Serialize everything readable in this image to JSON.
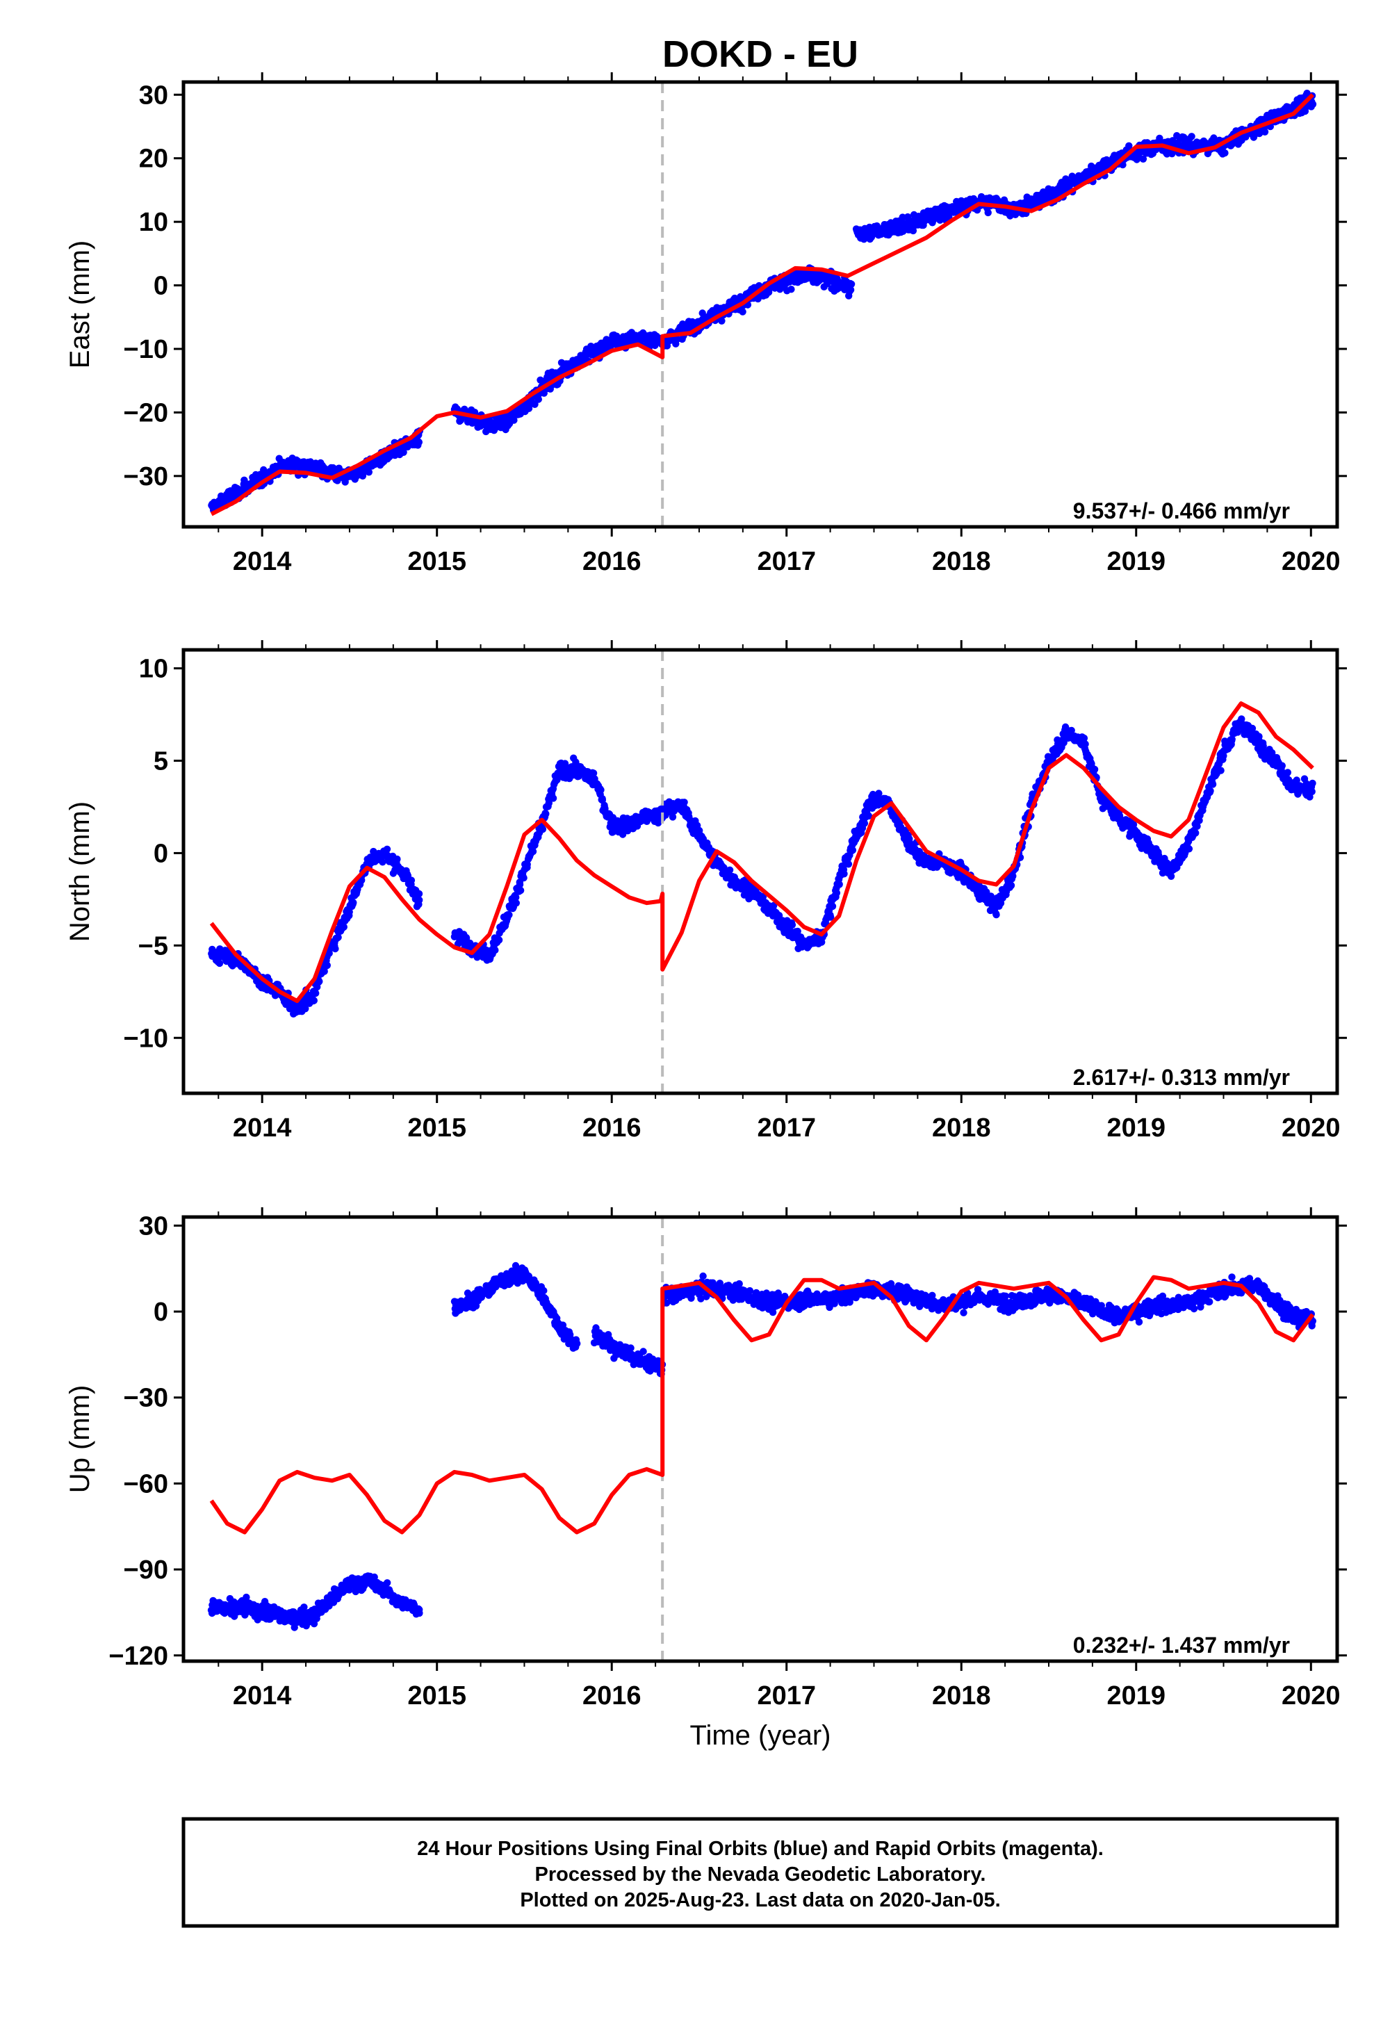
{
  "title": "DOKD - EU",
  "footer": {
    "line1": "24 Hour Positions Using Final Orbits (blue) and Rapid Orbits (magenta).",
    "line2": "Processed by the Nevada Geodetic Laboratory.",
    "line3": "Plotted on 2025-Aug-23. Last data on 2020-Jan-05."
  },
  "colors": {
    "data": "#0000ff",
    "model": "#ff0000",
    "event_line": "#bbbbbb",
    "frame": "#000000"
  },
  "event_time": 2016.29,
  "chart_data": [
    {
      "type": "scatter",
      "component": "east",
      "ylabel": "East (mm)",
      "xlabel": "",
      "rate_text": "9.537+/- 0.466 mm/yr",
      "xlim": [
        2013.55,
        2020.15
      ],
      "ylim": [
        -38,
        32
      ],
      "x_ticks": [
        "2014",
        "2015",
        "2016",
        "2017",
        "2018",
        "2019",
        "2020"
      ],
      "y_ticks": [
        -30,
        -20,
        -10,
        0,
        10,
        20,
        30
      ],
      "y_tick_labels": [
        "−30",
        "−20",
        "−10",
        "0",
        "10",
        "20",
        "30"
      ],
      "series": [
        {
          "kind": "points",
          "segments": [
            {
              "x": [
                2013.71,
                2013.8,
                2013.9,
                2014.0,
                2014.1,
                2014.2,
                2014.3,
                2014.4,
                2014.5,
                2014.6,
                2014.7,
                2014.8,
                2014.9
              ],
              "y": [
                -35,
                -33.5,
                -32,
                -30.5,
                -28.5,
                -28,
                -28.8,
                -29.5,
                -30,
                -28.5,
                -27,
                -25.5,
                -24
              ]
            },
            {
              "x": [
                2015.1,
                2015.2,
                2015.3,
                2015.4,
                2015.5,
                2015.6,
                2015.7,
                2015.8,
                2015.9,
                2016.0,
                2016.1,
                2016.2,
                2016.29
              ],
              "y": [
                -20,
                -20.5,
                -22,
                -21.5,
                -19,
                -16,
                -14,
                -12,
                -10.5,
                -9,
                -8.5,
                -8.5,
                -8.5
              ]
            },
            {
              "x": [
                2016.3,
                2016.5,
                2016.7,
                2016.9,
                2017.1,
                2017.3,
                2017.37
              ],
              "y": [
                -8.5,
                -6,
                -3,
                0,
                1.5,
                0.5,
                -0.5
              ]
            },
            {
              "x": [
                2017.4,
                2017.5,
                2017.7,
                2017.9,
                2018.1,
                2018.2,
                2018.3,
                2018.5,
                2018.7,
                2018.9,
                2019.1,
                2019.3,
                2019.5,
                2019.7,
                2019.9,
                2020.01
              ],
              "y": [
                8,
                8.5,
                9.5,
                11.5,
                13,
                13,
                12,
                14,
                17,
                20,
                22,
                22,
                22,
                25,
                28,
                29
              ]
            }
          ]
        },
        {
          "kind": "model",
          "x": [
            2013.71,
            2013.85,
            2014.0,
            2014.1,
            2014.25,
            2014.4,
            2014.55,
            2014.7,
            2014.85,
            2015.0,
            2015.1,
            2015.25,
            2015.4,
            2015.55,
            2015.7,
            2015.85,
            2016.0,
            2016.15,
            2016.29,
            2016.29,
            2016.45,
            2016.6,
            2016.75,
            2016.9,
            2017.05,
            2017.2,
            2017.35,
            2017.5,
            2017.65,
            2017.8,
            2017.95,
            2018.1,
            2018.25,
            2018.4,
            2018.55,
            2018.7,
            2018.85,
            2019.0,
            2019.15,
            2019.3,
            2019.45,
            2019.6,
            2019.75,
            2019.9,
            2020.01
          ],
          "y": [
            -36,
            -34,
            -31,
            -29.3,
            -29.5,
            -30.3,
            -28.3,
            -26,
            -24,
            -20.6,
            -20,
            -20.8,
            -19.8,
            -17,
            -14.5,
            -12.5,
            -10.3,
            -9.3,
            -11.3,
            -8,
            -7.5,
            -5,
            -2.8,
            0.3,
            2.7,
            2.5,
            1.5,
            3.5,
            5.5,
            7.5,
            10.3,
            12.8,
            12.4,
            11.7,
            13.5,
            16,
            18.2,
            21.8,
            22,
            20.8,
            21.7,
            24,
            25.5,
            27,
            30
          ]
        }
      ]
    },
    {
      "type": "scatter",
      "component": "north",
      "ylabel": "North (mm)",
      "xlabel": "",
      "rate_text": "2.617+/- 0.313 mm/yr",
      "xlim": [
        2013.55,
        2020.15
      ],
      "ylim": [
        -13,
        11
      ],
      "x_ticks": [
        "2014",
        "2015",
        "2016",
        "2017",
        "2018",
        "2019",
        "2020"
      ],
      "y_ticks": [
        -10,
        -5,
        0,
        5,
        10
      ],
      "y_tick_labels": [
        "−10",
        "−5",
        "0",
        "5",
        "10"
      ],
      "series": [
        {
          "kind": "points",
          "segments": [
            {
              "x": [
                2013.71,
                2013.8,
                2013.9,
                2014.0,
                2014.1,
                2014.2,
                2014.3,
                2014.4,
                2014.5,
                2014.6,
                2014.7,
                2014.8,
                2014.9
              ],
              "y": [
                -5.5,
                -5.5,
                -6,
                -7,
                -7.5,
                -8.5,
                -7.5,
                -5,
                -3,
                -0.5,
                0,
                -1,
                -2.5
              ]
            },
            {
              "x": [
                2015.1,
                2015.2,
                2015.3,
                2015.4,
                2015.5,
                2015.6,
                2015.7,
                2015.8,
                2015.9,
                2016.0,
                2016.1,
                2016.2,
                2016.29
              ],
              "y": [
                -4.5,
                -5,
                -5.5,
                -3.5,
                -1,
                1.5,
                4.5,
                4.5,
                4,
                1.5,
                1.5,
                2,
                2
              ]
            },
            {
              "x": [
                2016.3,
                2016.4,
                2016.5,
                2016.6,
                2016.7,
                2016.8,
                2016.9,
                2017.0,
                2017.1,
                2017.2,
                2017.3,
                2017.4,
                2017.5,
                2017.6,
                2017.7,
                2017.8,
                2017.9,
                2018.0,
                2018.1,
                2018.2,
                2018.3,
                2018.4,
                2018.5,
                2018.6,
                2018.7,
                2018.8,
                2018.9,
                2019.0,
                2019.1,
                2019.2,
                2019.3,
                2019.4,
                2019.5,
                2019.6,
                2019.7,
                2019.8,
                2019.9,
                2020.01
              ],
              "y": [
                2.5,
                2.5,
                1,
                -0.5,
                -1.5,
                -2,
                -3,
                -4,
                -5,
                -4.5,
                -1.5,
                1,
                3,
                2.5,
                0.5,
                -0.5,
                -0.5,
                -1,
                -2,
                -3,
                -1,
                2.5,
                5,
                6.5,
                6,
                3,
                2,
                1,
                0,
                -1,
                0.5,
                3,
                5.5,
                7,
                6,
                5,
                3.5,
                3.5
              ]
            }
          ]
        },
        {
          "kind": "model",
          "x": [
            2013.71,
            2013.85,
            2014.0,
            2014.1,
            2014.2,
            2014.3,
            2014.4,
            2014.5,
            2014.6,
            2014.7,
            2014.8,
            2014.9,
            2015.0,
            2015.1,
            2015.2,
            2015.3,
            2015.4,
            2015.5,
            2015.6,
            2015.7,
            2015.8,
            2015.9,
            2016.0,
            2016.1,
            2016.2,
            2016.28,
            2016.29,
            2016.29,
            2016.4,
            2016.5,
            2016.6,
            2016.7,
            2016.8,
            2016.9,
            2017.0,
            2017.1,
            2017.2,
            2017.3,
            2017.4,
            2017.5,
            2017.6,
            2017.7,
            2017.8,
            2017.9,
            2018.0,
            2018.1,
            2018.2,
            2018.3,
            2018.4,
            2018.5,
            2018.6,
            2018.7,
            2018.8,
            2018.9,
            2019.0,
            2019.1,
            2019.2,
            2019.3,
            2019.4,
            2019.5,
            2019.6,
            2019.7,
            2019.8,
            2019.9,
            2020.01
          ],
          "y": [
            -3.8,
            -5.5,
            -6.8,
            -7.5,
            -8,
            -6.8,
            -4.2,
            -1.8,
            -0.8,
            -1.3,
            -2.5,
            -3.6,
            -4.4,
            -5.1,
            -5.4,
            -4.4,
            -1.8,
            1,
            1.8,
            0.8,
            -0.4,
            -1.2,
            -1.8,
            -2.4,
            -2.7,
            -2.6,
            -2.2,
            -6.3,
            -4.3,
            -1.5,
            0.1,
            -0.5,
            -1.5,
            -2.3,
            -3.1,
            -4,
            -4.4,
            -3.4,
            -0.4,
            2,
            2.7,
            1.4,
            0.1,
            -0.4,
            -0.9,
            -1.5,
            -1.7,
            -0.7,
            2.3,
            4.6,
            5.3,
            4.6,
            3.5,
            2.5,
            1.8,
            1.2,
            0.9,
            1.8,
            4.3,
            6.8,
            8.1,
            7.6,
            6.3,
            5.6,
            4.6
          ]
        }
      ]
    },
    {
      "type": "scatter",
      "component": "up",
      "ylabel": "Up (mm)",
      "xlabel": "Time (year)",
      "rate_text": "0.232+/- 1.437 mm/yr",
      "xlim": [
        2013.55,
        2020.15
      ],
      "ylim": [
        -122,
        33
      ],
      "x_ticks": [
        "2014",
        "2015",
        "2016",
        "2017",
        "2018",
        "2019",
        "2020"
      ],
      "y_ticks": [
        -120,
        -90,
        -60,
        -30,
        0,
        30
      ],
      "y_tick_labels": [
        "−120",
        "−90",
        "−60",
        "−30",
        "0",
        "30"
      ],
      "series": [
        {
          "kind": "points",
          "segments": [
            {
              "x": [
                2013.71,
                2013.8,
                2013.9,
                2014.0,
                2014.1,
                2014.2,
                2014.3,
                2014.4,
                2014.5,
                2014.6,
                2014.7,
                2014.8,
                2014.9
              ],
              "y": [
                -103,
                -104,
                -103,
                -105,
                -106,
                -107,
                -106,
                -100,
                -95,
                -94,
                -97,
                -102,
                -104
              ]
            },
            {
              "x": [
                2015.1,
                2015.2,
                2015.3,
                2015.4,
                2015.5,
                2015.6,
                2015.7,
                2015.8
              ],
              "y": [
                2,
                4,
                8,
                12,
                13,
                6,
                -5,
                -12
              ]
            },
            {
              "x": [
                2015.9,
                2016.0,
                2016.1,
                2016.2,
                2016.29
              ],
              "y": [
                -8,
                -12,
                -15,
                -18,
                -20
              ]
            },
            {
              "x": [
                2016.3,
                2016.5,
                2016.7,
                2016.9,
                2017.1,
                2017.3,
                2017.5,
                2017.7,
                2017.9,
                2018.1,
                2018.3,
                2018.5,
                2018.7,
                2018.9,
                2019.1,
                2019.3,
                2019.5,
                2019.7,
                2019.9,
                2020.01
              ],
              "y": [
                5,
                8,
                7,
                3,
                4,
                5,
                8,
                6,
                2,
                5,
                3,
                6,
                3,
                -2,
                2,
                3,
                8,
                9,
                -2,
                -3
              ]
            }
          ]
        },
        {
          "kind": "model",
          "x": [
            2013.71,
            2013.8,
            2013.9,
            2014.0,
            2014.1,
            2014.2,
            2014.3,
            2014.4,
            2014.5,
            2014.6,
            2014.7,
            2014.8,
            2014.9,
            2015.0,
            2015.1,
            2015.2,
            2015.3,
            2015.4,
            2015.5,
            2015.6,
            2015.7,
            2015.8,
            2015.9,
            2016.0,
            2016.1,
            2016.2,
            2016.29,
            2016.29,
            2016.4,
            2016.5,
            2016.6,
            2016.7,
            2016.8,
            2016.9,
            2017.0,
            2017.1,
            2017.2,
            2017.3,
            2017.4,
            2017.5,
            2017.6,
            2017.7,
            2017.8,
            2017.9,
            2018.0,
            2018.1,
            2018.2,
            2018.3,
            2018.4,
            2018.5,
            2018.6,
            2018.7,
            2018.8,
            2018.9,
            2019.0,
            2019.1,
            2019.2,
            2019.3,
            2019.4,
            2019.5,
            2019.6,
            2019.7,
            2019.8,
            2019.9,
            2020.01
          ],
          "y": [
            -66,
            -74,
            -77,
            -69,
            -59,
            -56,
            -58,
            -59,
            -57,
            -64,
            -73,
            -77,
            -71,
            -60,
            -56,
            -57,
            -59,
            -58,
            -57,
            -62,
            -72,
            -77,
            -74,
            -64,
            -57,
            -55,
            -57,
            8,
            9,
            10,
            5,
            -3,
            -10,
            -8,
            3,
            11,
            11,
            8,
            9,
            10,
            5,
            -5,
            -10,
            -2,
            7,
            10,
            9,
            8,
            9,
            10,
            5,
            -3,
            -10,
            -8,
            3,
            12,
            11,
            8,
            9,
            10,
            9,
            3,
            -7,
            -10,
            -1
          ]
        }
      ]
    }
  ]
}
